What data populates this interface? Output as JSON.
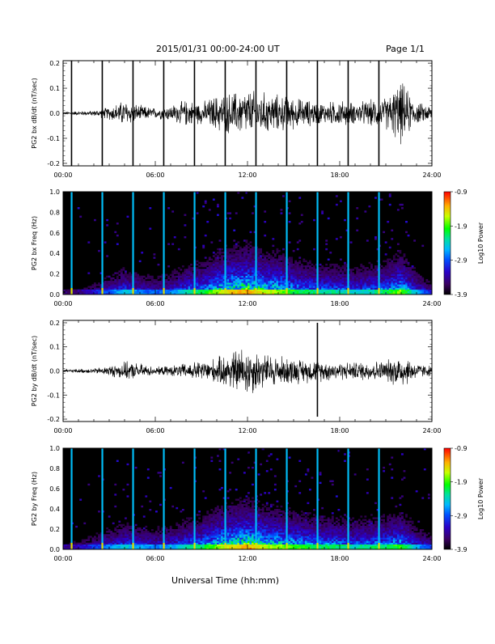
{
  "header": {
    "title": "2015/01/31  00:00-24:00 UT",
    "page": "Page 1/1"
  },
  "xaxis": {
    "label": "Universal Time (hh:mm)",
    "ticks": [
      "00:00",
      "06:00",
      "12:00",
      "18:00",
      "24:00"
    ],
    "range_hours": [
      0,
      24
    ]
  },
  "colorbar": {
    "label": "Log10 Power",
    "ticks": [
      "-0.9",
      "-1.9",
      "-2.9",
      "-3.9"
    ],
    "range": [
      -3.9,
      -0.9
    ]
  },
  "chart_data": [
    {
      "type": "line",
      "name": "bx-waveform",
      "ylabel": "PG2 bx dB/dt (nT/sec)",
      "yticks": [
        "0.2",
        "0.1",
        "0.0",
        "-0.1",
        "-0.2"
      ],
      "ylim": [
        -0.21,
        0.21
      ],
      "x_hours": [
        0,
        1,
        2,
        3,
        4,
        5,
        6,
        7,
        8,
        9,
        10,
        11,
        12,
        13,
        14,
        15,
        16,
        17,
        18,
        19,
        20,
        21,
        22,
        23,
        24
      ],
      "envelope": [
        0.005,
        0.008,
        0.01,
        0.025,
        0.05,
        0.03,
        0.02,
        0.03,
        0.05,
        0.04,
        0.07,
        0.08,
        0.09,
        0.08,
        0.07,
        0.06,
        0.05,
        0.04,
        0.05,
        0.04,
        0.05,
        0.06,
        0.12,
        0.04,
        0.03
      ],
      "spikes_hours": [
        0.55,
        2.55,
        4.55,
        6.55,
        8.55,
        10.55,
        12.55,
        14.55,
        16.55,
        18.55,
        20.55
      ],
      "spike_range": [
        -0.21,
        0.21
      ]
    },
    {
      "type": "heatmap",
      "name": "bx-spectrogram",
      "ylabel": "PG2 bx Freq (Hz)",
      "yticks": [
        "1.0",
        "0.8",
        "0.6",
        "0.4",
        "0.2",
        "0.0"
      ],
      "ylim": [
        0,
        1.0
      ],
      "x_hours": [
        0,
        1,
        2,
        3,
        4,
        5,
        6,
        7,
        8,
        9,
        10,
        11,
        12,
        13,
        14,
        15,
        16,
        17,
        18,
        19,
        20,
        21,
        22,
        23,
        24
      ],
      "activity": [
        0.05,
        0.1,
        0.2,
        0.3,
        0.45,
        0.35,
        0.3,
        0.35,
        0.5,
        0.55,
        0.7,
        0.8,
        0.85,
        0.75,
        0.7,
        0.6,
        0.55,
        0.5,
        0.5,
        0.45,
        0.5,
        0.55,
        0.7,
        0.4,
        0.2
      ],
      "lines_hours": [
        0.55,
        2.55,
        4.55,
        6.55,
        8.55,
        10.55,
        12.55,
        14.55,
        16.55,
        18.55,
        20.55
      ]
    },
    {
      "type": "line",
      "name": "by-waveform",
      "ylabel": "PG2 by dB/dt (nT/sec)",
      "yticks": [
        "0.2",
        "0.1",
        "0.0",
        "-0.1",
        "-0.2"
      ],
      "ylim": [
        -0.21,
        0.21
      ],
      "x_hours": [
        0,
        1,
        2,
        3,
        4,
        5,
        6,
        7,
        8,
        9,
        10,
        11,
        12,
        13,
        14,
        15,
        16,
        17,
        18,
        19,
        20,
        21,
        22,
        23,
        24
      ],
      "envelope": [
        0.005,
        0.008,
        0.01,
        0.02,
        0.035,
        0.03,
        0.015,
        0.02,
        0.03,
        0.04,
        0.05,
        0.08,
        0.1,
        0.07,
        0.06,
        0.05,
        0.045,
        0.04,
        0.035,
        0.035,
        0.04,
        0.04,
        0.07,
        0.03,
        0.02
      ],
      "spikes_hours": [
        16.55
      ],
      "spike_range": [
        -0.19,
        0.2
      ]
    },
    {
      "type": "heatmap",
      "name": "by-spectrogram",
      "ylabel": "PG2 by Freq (Hz)",
      "yticks": [
        "1.0",
        "0.8",
        "0.6",
        "0.4",
        "0.2",
        "0.0"
      ],
      "ylim": [
        0,
        1.0
      ],
      "x_hours": [
        0,
        1,
        2,
        3,
        4,
        5,
        6,
        7,
        8,
        9,
        10,
        11,
        12,
        13,
        14,
        15,
        16,
        17,
        18,
        19,
        20,
        21,
        22,
        23,
        24
      ],
      "activity": [
        0.1,
        0.15,
        0.25,
        0.35,
        0.45,
        0.4,
        0.35,
        0.4,
        0.5,
        0.55,
        0.7,
        0.8,
        0.85,
        0.75,
        0.7,
        0.65,
        0.6,
        0.55,
        0.55,
        0.5,
        0.55,
        0.55,
        0.65,
        0.4,
        0.25
      ],
      "lines_hours": [
        0.55,
        2.55,
        4.55,
        6.55,
        8.55,
        10.55,
        12.55,
        14.55,
        16.55,
        18.55,
        20.55
      ]
    }
  ]
}
